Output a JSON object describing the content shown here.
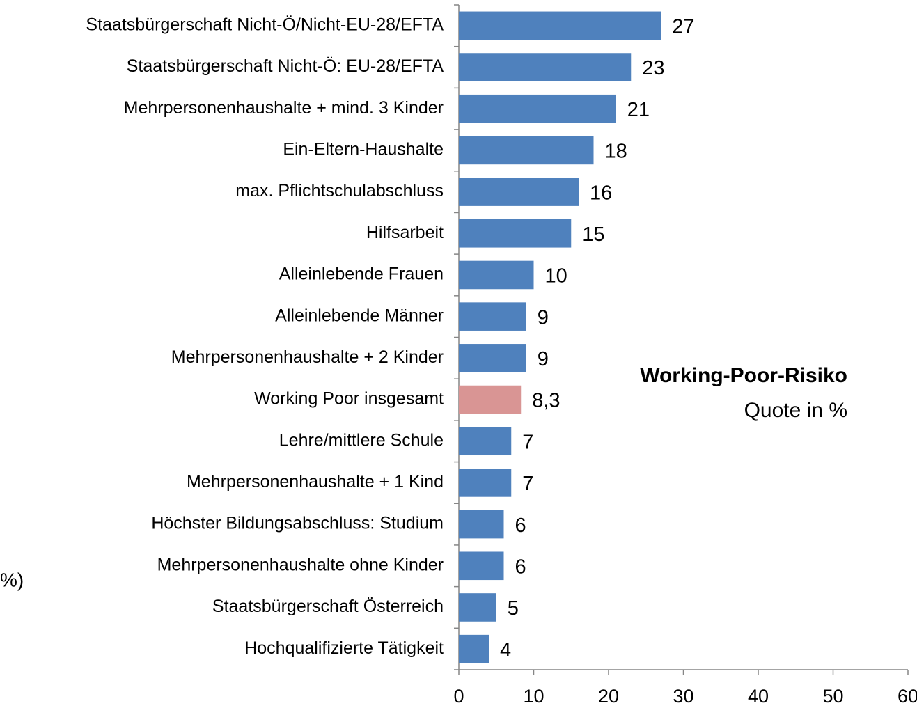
{
  "chart_data": {
    "type": "barh",
    "title": "Working-Poor-Risiko",
    "subtitle": "Quote in %",
    "annotations": [
      "%)"
    ],
    "categories": [
      "Staatsbürgerschaft Nicht-Ö/Nicht-EU-28/EFTA",
      "Staatsbürgerschaft Nicht-Ö: EU-28/EFTA",
      "Mehrpersonenhaushalte + mind. 3 Kinder",
      "Ein-Eltern-Haushalte",
      "max. Pflichtschulabschluss",
      "Hilfsarbeit",
      "Alleinlebende Frauen",
      "Alleinlebende Männer",
      "Mehrpersonenhaushalte + 2 Kinder",
      "Working Poor insgesamt",
      "Lehre/mittlere Schule",
      "Mehrpersonenhaushalte + 1 Kind",
      "Höchster Bildungsabschluss: Studium",
      "Mehrpersonenhaushalte ohne Kinder",
      "Staatsbürgerschaft Österreich",
      "Hochqualifizierte Tätigkeit"
    ],
    "values": [
      27,
      23,
      21,
      18,
      16,
      15,
      10,
      9,
      9,
      8.3,
      7,
      7,
      6,
      6,
      5,
      4
    ],
    "value_labels": [
      "27",
      "23",
      "21",
      "18",
      "16",
      "15",
      "10",
      "9",
      "9",
      "8,3",
      "7",
      "7",
      "6",
      "6",
      "5",
      "4"
    ],
    "colors": [
      "#4f81bd",
      "#4f81bd",
      "#4f81bd",
      "#4f81bd",
      "#4f81bd",
      "#4f81bd",
      "#4f81bd",
      "#4f81bd",
      "#4f81bd",
      "#d99594",
      "#4f81bd",
      "#4f81bd",
      "#4f81bd",
      "#4f81bd",
      "#4f81bd",
      "#4f81bd"
    ],
    "xlim": [
      0,
      60
    ],
    "xticks": [
      0,
      10,
      20,
      30,
      40,
      50,
      60
    ],
    "grid": false
  }
}
